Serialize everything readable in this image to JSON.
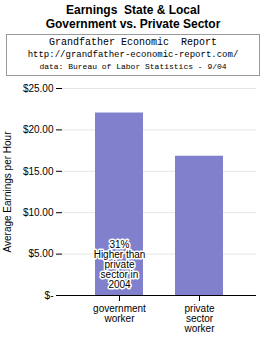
{
  "chart_data": {
    "type": "bar",
    "title": "Earnings  State & Local\nGovernment vs. Private Sector",
    "subtitle": "Grandfather Economic  Report\nhttp://grandfather-economic-report.com/\ndata: Bureau of Labor Statistics - 9/04",
    "categories": [
      "government\nworker",
      "private\nsector\nworker"
    ],
    "values": [
      22.04,
      16.82
    ],
    "color": "#8080cc",
    "ylabel": "Average Earnings per Hour",
    "ylim": [
      0,
      25
    ],
    "yticks": [
      {
        "value": 0,
        "label": "$-"
      },
      {
        "value": 5,
        "label": "$5.00"
      },
      {
        "value": 10,
        "label": "$10.00"
      },
      {
        "value": 15,
        "label": "$15.00"
      },
      {
        "value": 20,
        "label": "$20.00"
      },
      {
        "value": 25,
        "label": "$25.00"
      }
    ],
    "grid": true,
    "annotation": "31%\nHigher than\nprivate\nsector in\n2004"
  }
}
